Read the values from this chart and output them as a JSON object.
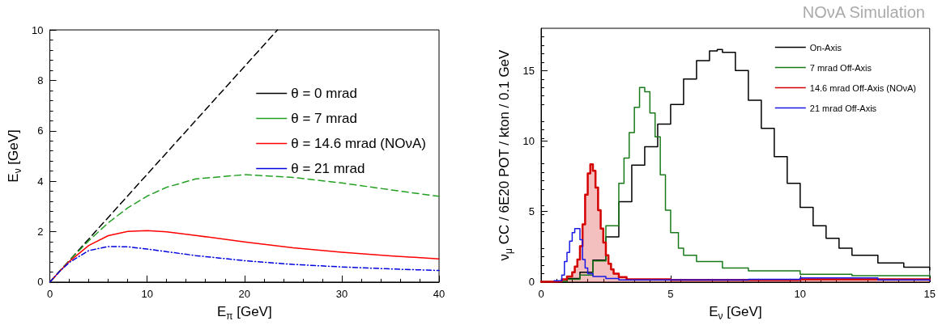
{
  "chart_data": [
    {
      "type": "line",
      "xlabel": "E$_{π}$ [GeV]",
      "ylabel": "E$_{ν}$ [GeV]",
      "xlim": [
        0,
        40
      ],
      "ylim": [
        0,
        10
      ],
      "xticks": [
        0,
        10,
        20,
        30,
        40
      ],
      "yticks": [
        0,
        2,
        4,
        6,
        8,
        10
      ],
      "grid": false,
      "legend": "top right",
      "marker": "none",
      "series": [
        {
          "name": "θ = 0 mrad",
          "color": "#000000",
          "line_style": "dashed",
          "x": [
            0,
            23.4
          ],
          "values": [
            0,
            10
          ]
        },
        {
          "name": "θ = 7 mrad",
          "color": "#22a022",
          "line_style": "dashed",
          "x": [
            0,
            1,
            2,
            4,
            6,
            8,
            10,
            12,
            15,
            20,
            25,
            30,
            35,
            40
          ],
          "values": [
            0,
            0.43,
            0.85,
            1.64,
            2.35,
            2.94,
            3.41,
            3.76,
            4.09,
            4.26,
            4.15,
            3.93,
            3.66,
            3.4
          ]
        },
        {
          "name": "θ = 14.6 mrad (NOνA)",
          "color": "#ff0000",
          "line_style": "solid",
          "x": [
            0,
            1,
            2,
            4,
            6,
            8,
            10,
            12,
            15,
            20,
            25,
            30,
            35,
            40
          ],
          "values": [
            0,
            0.42,
            0.82,
            1.45,
            1.84,
            2.01,
            2.04,
            1.99,
            1.85,
            1.59,
            1.36,
            1.18,
            1.04,
            0.92
          ]
        },
        {
          "name": "θ = 21 mrad",
          "color": "#0000e0",
          "line_style": "dotted",
          "x": [
            0,
            1,
            2,
            4,
            6,
            8,
            10,
            15,
            20,
            25,
            30,
            35,
            40
          ],
          "values": [
            0,
            0.42,
            0.78,
            1.25,
            1.41,
            1.4,
            1.31,
            1.05,
            0.85,
            0.7,
            0.6,
            0.52,
            0.46
          ]
        }
      ]
    },
    {
      "type": "step",
      "title": "NOνA Simulation",
      "xlabel": "E$_{ν}$ [GeV]",
      "ylabel": "ν$_{μ}$ CC / 6E20 POT / kton / 0.1 GeV",
      "xlim": [
        0,
        15
      ],
      "ylim": [
        0,
        18
      ],
      "xticks": [
        0,
        5,
        10,
        15
      ],
      "yticks": [
        0,
        5,
        10,
        15
      ],
      "grid": false,
      "legend": "top right",
      "marker": "none",
      "series": [
        {
          "name": "On-Axis",
          "color": "#000000",
          "x": [
            0,
            0.5,
            1,
            1.5,
            2,
            2.5,
            3,
            3.5,
            4,
            4.5,
            5,
            5.5,
            6,
            6.5,
            6.8,
            7,
            7.5,
            8,
            8.5,
            9,
            9.5,
            10,
            10.5,
            11,
            11.5,
            12,
            13,
            14,
            15
          ],
          "values": [
            0.02,
            0.05,
            0.25,
            0.7,
            1.55,
            3.2,
            5.7,
            8.3,
            9.6,
            11.2,
            12.6,
            14.4,
            15.7,
            16.4,
            16.5,
            16.3,
            15,
            12.9,
            10.9,
            8.9,
            7,
            5.3,
            4,
            3.1,
            2.4,
            1.9,
            1.35,
            1.05,
            0.85
          ]
        },
        {
          "name": "7 mrad Off-Axis",
          "color": "#1a7a1a",
          "x": [
            0,
            0.5,
            1,
            1.5,
            2,
            2.5,
            3,
            3.2,
            3.4,
            3.6,
            3.8,
            4,
            4.2,
            4.4,
            4.6,
            4.8,
            5,
            5.3,
            5.5,
            6,
            7,
            8,
            10,
            12,
            15
          ],
          "values": [
            0.02,
            0.05,
            0.2,
            0.5,
            1.5,
            4,
            7,
            8.8,
            10.6,
            12.4,
            13.8,
            13.5,
            12,
            10.3,
            7.6,
            5.1,
            3.5,
            2.4,
            1.9,
            1.45,
            1,
            0.8,
            0.55,
            0.45,
            0.35
          ]
        },
        {
          "name": "14.6 mrad Off-Axis (NOνA)",
          "type": "area",
          "color": "#d40000",
          "x": [
            0,
            0.5,
            0.8,
            1,
            1.2,
            1.3,
            1.4,
            1.5,
            1.6,
            1.7,
            1.8,
            1.9,
            2,
            2.1,
            2.2,
            2.3,
            2.4,
            2.5,
            2.6,
            2.7,
            2.8,
            3,
            3.3,
            5,
            10,
            12,
            15
          ],
          "values": [
            0.02,
            0.05,
            0.2,
            0.4,
            0.7,
            1.1,
            1.6,
            2.55,
            4.1,
            6.2,
            7.7,
            8.35,
            7.9,
            6.7,
            5.1,
            3.8,
            2.8,
            1.9,
            1.3,
            0.9,
            0.6,
            0.35,
            0.2,
            0.15,
            0.2,
            0.2,
            0.15
          ]
        },
        {
          "name": "21 mrad Off-Axis",
          "color": "#1a1ae6",
          "x": [
            0.5,
            0.8,
            0.9,
            1,
            1.1,
            1.2,
            1.3,
            1.5,
            1.6,
            1.7,
            1.8,
            2,
            2.5,
            3,
            5,
            8,
            10,
            11,
            13,
            15
          ],
          "values": [
            0.1,
            0.5,
            1.45,
            2.1,
            2.9,
            3.5,
            3.8,
            3,
            1.6,
            1,
            0.6,
            0.4,
            0.25,
            0.15,
            0.15,
            0.2,
            0.3,
            0.3,
            0.15,
            0.1
          ]
        }
      ]
    }
  ]
}
